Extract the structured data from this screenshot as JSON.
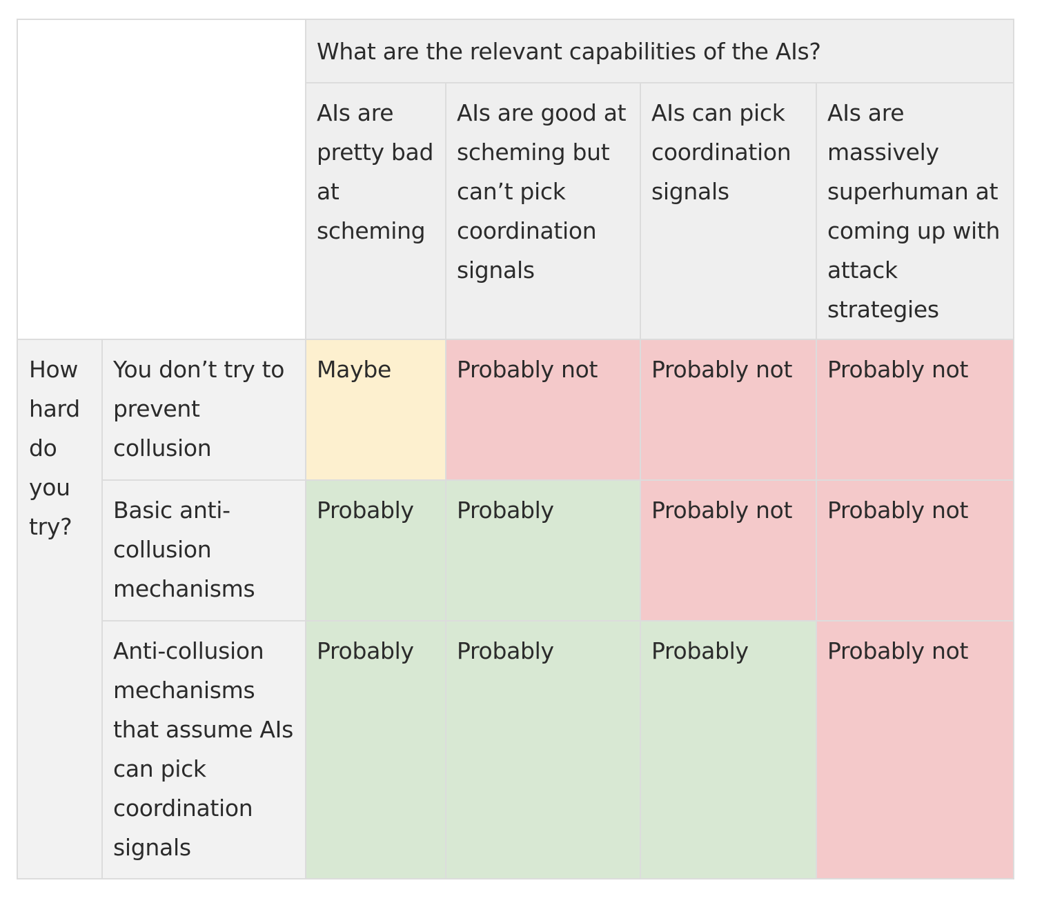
{
  "table": {
    "column_group_header": "What are the relevant capabilities of the AIs?",
    "columns": [
      "AIs are pretty bad at scheming",
      "AIs are good at scheming but can’t pick coordination signals",
      "AIs can pick coordination signals",
      "AIs are massively superhuman at coming up with attack strategies"
    ],
    "row_group_header": "How hard do you try?",
    "rows": [
      {
        "label": "You don’t try to prevent collusion",
        "cells": [
          "Maybe",
          "Probably not",
          "Probably not",
          "Probably not"
        ]
      },
      {
        "label": "Basic anti-collusion mechanisms",
        "cells": [
          "Probably",
          "Probably",
          "Probably not",
          "Probably not"
        ]
      },
      {
        "label": "Anti-collusion mechanisms that assume AIs can pick coordination signals",
        "cells": [
          "Probably",
          "Probably",
          "Probably",
          "Probably not"
        ]
      }
    ],
    "colors": {
      "maybe": "#fdf0cf",
      "probably": "#d8e8d3",
      "probably_not": "#f4c9ca",
      "header_bg": "#efefef",
      "row_header_bg": "#f2f2f2",
      "border": "#dcdcdc"
    }
  }
}
